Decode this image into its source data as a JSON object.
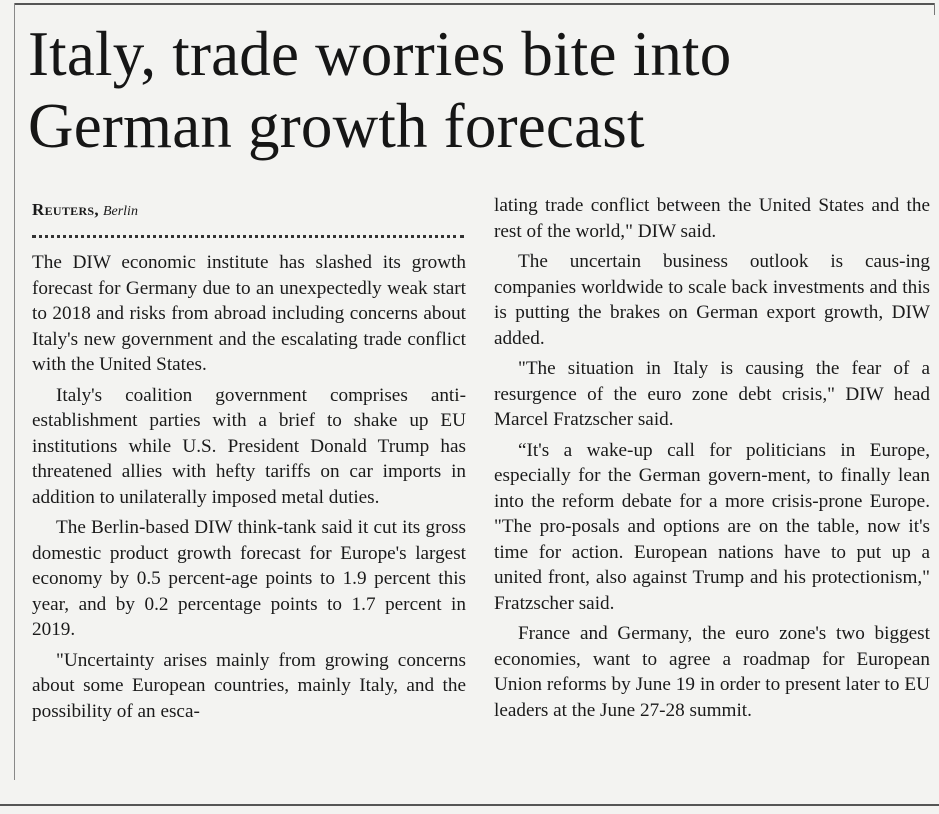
{
  "article": {
    "headline": "Italy, trade worries bite into German growth forecast",
    "agency": "Reuters,",
    "city": "Berlin",
    "left_column": [
      "The DIW economic institute has slashed its growth forecast for Germany due to an unexpectedly weak start to 2018 and risks from abroad including concerns about Italy's new government and the escalating trade conflict with the United States.",
      "Italy's coalition government comprises anti-establishment parties with a brief to shake up EU institutions while U.S. President Donald Trump has threatened allies with hefty tariffs on car imports in addition to unilaterally imposed metal duties.",
      "The Berlin-based DIW think-tank said it cut its gross domestic product growth forecast for Europe's largest economy by 0.5 percent-age points to 1.9 percent this year, and by 0.2 percentage points to 1.7 percent in 2019.",
      "\"Uncertainty arises mainly from growing concerns about some European countries, mainly Italy, and the possibility of an esca-"
    ],
    "right_column": [
      "lating trade conflict between the United States and the rest of the world,\" DIW said.",
      "The uncertain business outlook is caus-ing companies worldwide to scale back investments and this is putting the brakes on German export growth, DIW added.",
      "\"The situation in Italy is causing the fear of a resurgence of the euro zone debt crisis,\" DIW head Marcel Fratzscher said.",
      "“It's a wake-up call for politicians in Europe, especially for the German govern-ment, to finally lean into the reform debate for a more crisis-prone Europe. \"The pro-posals and options are on the table, now it's time for action. European nations have to put up a united front, also against Trump and his protectionism,\" Fratzscher said.",
      "France and Germany, the euro zone's two biggest economies, want to agree a roadmap for European Union reforms by June 19 in order to present later to EU leaders at the June 27-28 summit."
    ]
  }
}
